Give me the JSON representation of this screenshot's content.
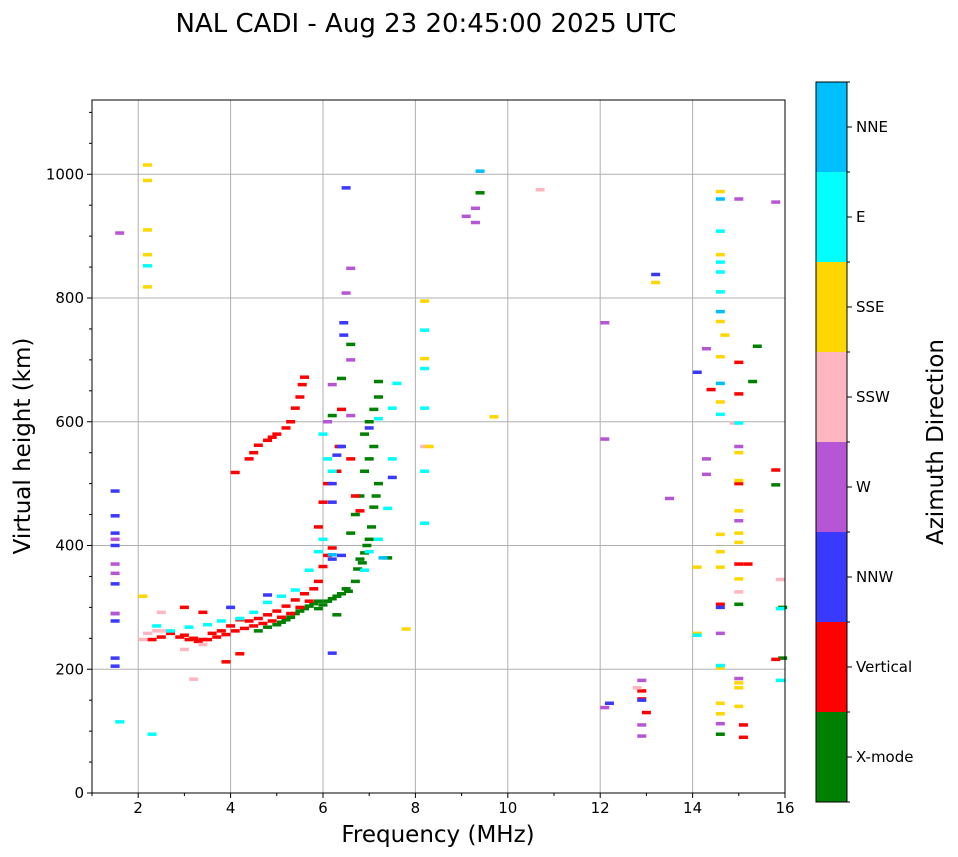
{
  "chart_data": {
    "type": "scatter",
    "title": "NAL CADI - Aug 23 20:45:00 2025 UTC",
    "xlabel": "Frequency (MHz)",
    "ylabel": "Virtual height (km)",
    "xlim": [
      1,
      16
    ],
    "ylim": [
      0,
      1120
    ],
    "xticks": [
      2,
      4,
      6,
      8,
      10,
      12,
      14,
      16
    ],
    "xtick_labels": [
      "2",
      "4",
      "6",
      "8",
      "10",
      "12",
      "14",
      "16"
    ],
    "yticks": [
      0,
      200,
      400,
      600,
      800,
      1000
    ],
    "ytick_labels": [
      "0",
      "200",
      "400",
      "600",
      "800",
      "1000"
    ],
    "grid": true,
    "colorbar": {
      "label": "Azimuth Direction",
      "categories": [
        {
          "name": "X-mode",
          "color": "#008000"
        },
        {
          "name": "Vertical",
          "color": "#ff0000"
        },
        {
          "name": "NNW",
          "color": "#3a3aff"
        },
        {
          "name": "W",
          "color": "#b656d6"
        },
        {
          "name": "SSW",
          "color": "#ffb6c1"
        },
        {
          "name": "SSE",
          "color": "#ffd700"
        },
        {
          "name": "E",
          "color": "#00ffff"
        },
        {
          "name": "NNE",
          "color": "#00bfff"
        }
      ]
    },
    "series": [
      {
        "name": "X-mode",
        "points": [
          [
            4.6,
            262
          ],
          [
            4.8,
            268
          ],
          [
            5.0,
            272
          ],
          [
            5.1,
            276
          ],
          [
            5.2,
            280
          ],
          [
            5.3,
            284
          ],
          [
            5.4,
            290
          ],
          [
            5.5,
            294
          ],
          [
            5.6,
            298
          ],
          [
            5.7,
            302
          ],
          [
            5.8,
            306
          ],
          [
            5.9,
            310
          ],
          [
            6.0,
            304
          ],
          [
            6.1,
            310
          ],
          [
            6.2,
            314
          ],
          [
            6.3,
            318
          ],
          [
            6.4,
            322
          ],
          [
            6.5,
            330
          ],
          [
            6.55,
            326
          ],
          [
            6.7,
            342
          ],
          [
            6.75,
            362
          ],
          [
            6.8,
            378
          ],
          [
            6.85,
            372
          ],
          [
            6.9,
            388
          ],
          [
            6.95,
            400
          ],
          [
            7.0,
            410
          ],
          [
            7.05,
            430
          ],
          [
            7.1,
            462
          ],
          [
            7.15,
            480
          ],
          [
            7.2,
            500
          ],
          [
            6.6,
            420
          ],
          [
            6.7,
            450
          ],
          [
            6.8,
            480
          ],
          [
            6.9,
            520
          ],
          [
            7.0,
            540
          ],
          [
            7.1,
            560
          ],
          [
            6.9,
            580
          ],
          [
            7.0,
            600
          ],
          [
            7.1,
            620
          ],
          [
            7.2,
            640
          ],
          [
            6.2,
            610
          ],
          [
            6.4,
            670
          ],
          [
            6.6,
            725
          ],
          [
            7.2,
            665
          ],
          [
            7.4,
            380
          ],
          [
            6.3,
            288
          ],
          [
            5.9,
            298
          ],
          [
            9.4,
            970
          ],
          [
            14.6,
            95
          ],
          [
            15.0,
            305
          ],
          [
            15.4,
            722
          ],
          [
            15.3,
            665
          ],
          [
            15.8,
            498
          ],
          [
            15.95,
            300
          ],
          [
            15.95,
            218
          ]
        ]
      },
      {
        "name": "Vertical",
        "points": [
          [
            2.3,
            248
          ],
          [
            2.5,
            252
          ],
          [
            2.7,
            258
          ],
          [
            2.9,
            252
          ],
          [
            3.1,
            248
          ],
          [
            3.3,
            245
          ],
          [
            3.5,
            248
          ],
          [
            3.7,
            252
          ],
          [
            3.9,
            256
          ],
          [
            4.1,
            262
          ],
          [
            4.3,
            266
          ],
          [
            4.5,
            270
          ],
          [
            4.7,
            274
          ],
          [
            4.9,
            278
          ],
          [
            5.1,
            284
          ],
          [
            5.3,
            290
          ],
          [
            5.5,
            300
          ],
          [
            5.7,
            310
          ],
          [
            5.8,
            330
          ],
          [
            5.9,
            342
          ],
          [
            6.0,
            366
          ],
          [
            6.1,
            384
          ],
          [
            6.2,
            396
          ],
          [
            3.0,
            255
          ],
          [
            3.2,
            250
          ],
          [
            3.4,
            248
          ],
          [
            3.6,
            258
          ],
          [
            3.8,
            262
          ],
          [
            4.0,
            270
          ],
          [
            4.2,
            280
          ],
          [
            4.4,
            278
          ],
          [
            4.6,
            282
          ],
          [
            4.8,
            288
          ],
          [
            5.0,
            294
          ],
          [
            5.2,
            302
          ],
          [
            5.4,
            312
          ],
          [
            5.6,
            322
          ],
          [
            3.0,
            300
          ],
          [
            3.4,
            292
          ],
          [
            3.9,
            212
          ],
          [
            4.2,
            225
          ],
          [
            4.1,
            518
          ],
          [
            4.4,
            540
          ],
          [
            4.5,
            550
          ],
          [
            4.6,
            562
          ],
          [
            4.8,
            570
          ],
          [
            4.9,
            575
          ],
          [
            5.0,
            580
          ],
          [
            5.2,
            590
          ],
          [
            5.3,
            600
          ],
          [
            5.4,
            622
          ],
          [
            5.5,
            640
          ],
          [
            5.55,
            660
          ],
          [
            5.6,
            672
          ],
          [
            5.9,
            430
          ],
          [
            6.0,
            470
          ],
          [
            6.1,
            500
          ],
          [
            6.3,
            520
          ],
          [
            6.35,
            560
          ],
          [
            6.4,
            620
          ],
          [
            6.6,
            540
          ],
          [
            6.7,
            480
          ],
          [
            6.8,
            456
          ],
          [
            12.9,
            165
          ],
          [
            12.9,
            152
          ],
          [
            13.0,
            130
          ],
          [
            14.4,
            652
          ],
          [
            14.6,
            305
          ],
          [
            15.0,
            696
          ],
          [
            15.0,
            645
          ],
          [
            15.0,
            500
          ],
          [
            15.0,
            370
          ],
          [
            15.2,
            370
          ],
          [
            15.1,
            110
          ],
          [
            15.1,
            90
          ],
          [
            15.8,
            522
          ],
          [
            15.8,
            216
          ]
        ]
      },
      {
        "name": "NNW",
        "points": [
          [
            1.5,
            488
          ],
          [
            1.5,
            448
          ],
          [
            1.5,
            420
          ],
          [
            1.5,
            400
          ],
          [
            1.5,
            338
          ],
          [
            1.5,
            290
          ],
          [
            1.5,
            278
          ],
          [
            1.5,
            218
          ],
          [
            1.5,
            205
          ],
          [
            6.2,
            226
          ],
          [
            6.2,
            378
          ],
          [
            6.4,
            384
          ],
          [
            6.2,
            470
          ],
          [
            6.2,
            500
          ],
          [
            6.3,
            546
          ],
          [
            6.4,
            560
          ],
          [
            6.45,
            740
          ],
          [
            6.45,
            760
          ],
          [
            6.5,
            978
          ],
          [
            7.0,
            590
          ],
          [
            7.5,
            510
          ],
          [
            4.0,
            300
          ],
          [
            4.8,
            320
          ],
          [
            12.2,
            145
          ],
          [
            12.9,
            150
          ],
          [
            13.2,
            838
          ],
          [
            14.1,
            680
          ],
          [
            14.6,
            300
          ]
        ]
      },
      {
        "name": "W",
        "points": [
          [
            1.5,
            410
          ],
          [
            1.5,
            370
          ],
          [
            1.5,
            355
          ],
          [
            1.5,
            290
          ],
          [
            1.6,
            905
          ],
          [
            6.1,
            600
          ],
          [
            6.2,
            660
          ],
          [
            6.5,
            808
          ],
          [
            6.6,
            848
          ],
          [
            6.6,
            700
          ],
          [
            6.6,
            610
          ],
          [
            9.1,
            932
          ],
          [
            9.3,
            922
          ],
          [
            9.3,
            945
          ],
          [
            12.1,
            760
          ],
          [
            12.1,
            572
          ],
          [
            12.1,
            138
          ],
          [
            12.9,
            182
          ],
          [
            12.9,
            110
          ],
          [
            12.9,
            92
          ],
          [
            13.5,
            476
          ],
          [
            14.3,
            718
          ],
          [
            14.3,
            540
          ],
          [
            14.3,
            515
          ],
          [
            14.6,
            258
          ],
          [
            14.6,
            112
          ],
          [
            15.0,
            960
          ],
          [
            15.0,
            560
          ],
          [
            15.0,
            440
          ],
          [
            15.0,
            185
          ],
          [
            15.8,
            955
          ]
        ]
      },
      {
        "name": "SSW",
        "points": [
          [
            2.1,
            248
          ],
          [
            2.2,
            258
          ],
          [
            2.4,
            262
          ],
          [
            2.5,
            292
          ],
          [
            2.6,
            262
          ],
          [
            3.0,
            232
          ],
          [
            3.2,
            184
          ],
          [
            3.4,
            240
          ],
          [
            8.2,
            560
          ],
          [
            10.7,
            975
          ],
          [
            12.8,
            170
          ],
          [
            14.9,
            598
          ],
          [
            15.0,
            325
          ],
          [
            15.9,
            345
          ]
        ]
      },
      {
        "name": "SSE",
        "points": [
          [
            2.2,
            1015
          ],
          [
            2.2,
            990
          ],
          [
            2.2,
            910
          ],
          [
            2.2,
            870
          ],
          [
            2.2,
            818
          ],
          [
            2.1,
            318
          ],
          [
            7.8,
            265
          ],
          [
            8.2,
            702
          ],
          [
            8.2,
            795
          ],
          [
            8.3,
            560
          ],
          [
            9.7,
            608
          ],
          [
            13.2,
            825
          ],
          [
            14.1,
            365
          ],
          [
            14.1,
            258
          ],
          [
            14.6,
            972
          ],
          [
            14.6,
            870
          ],
          [
            14.6,
            762
          ],
          [
            14.6,
            705
          ],
          [
            14.6,
            632
          ],
          [
            14.6,
            418
          ],
          [
            14.6,
            390
          ],
          [
            14.6,
            365
          ],
          [
            14.6,
            202
          ],
          [
            14.6,
            145
          ],
          [
            14.6,
            128
          ],
          [
            14.7,
            740
          ],
          [
            15.0,
            550
          ],
          [
            15.0,
            505
          ],
          [
            15.0,
            456
          ],
          [
            15.0,
            420
          ],
          [
            15.0,
            405
          ],
          [
            15.0,
            346
          ],
          [
            15.0,
            178
          ],
          [
            15.0,
            170
          ],
          [
            15.0,
            140
          ]
        ]
      },
      {
        "name": "E",
        "points": [
          [
            1.6,
            115
          ],
          [
            2.3,
            95
          ],
          [
            2.2,
            852
          ],
          [
            2.4,
            270
          ],
          [
            2.7,
            262
          ],
          [
            3.1,
            268
          ],
          [
            3.5,
            272
          ],
          [
            3.8,
            278
          ],
          [
            4.2,
            282
          ],
          [
            4.5,
            292
          ],
          [
            4.8,
            308
          ],
          [
            5.1,
            318
          ],
          [
            5.4,
            328
          ],
          [
            5.7,
            360
          ],
          [
            5.9,
            390
          ],
          [
            6.0,
            410
          ],
          [
            6.0,
            580
          ],
          [
            6.1,
            540
          ],
          [
            6.2,
            520
          ],
          [
            6.9,
            360
          ],
          [
            7.0,
            390
          ],
          [
            7.2,
            410
          ],
          [
            7.4,
            460
          ],
          [
            7.5,
            540
          ],
          [
            7.2,
            605
          ],
          [
            7.5,
            622
          ],
          [
            7.6,
            662
          ],
          [
            8.2,
            622
          ],
          [
            8.2,
            686
          ],
          [
            8.2,
            748
          ],
          [
            8.2,
            520
          ],
          [
            8.2,
            436
          ],
          [
            14.1,
            255
          ],
          [
            14.6,
            908
          ],
          [
            14.6,
            858
          ],
          [
            14.6,
            842
          ],
          [
            14.6,
            810
          ],
          [
            14.6,
            612
          ],
          [
            14.6,
            206
          ],
          [
            15.0,
            598
          ],
          [
            15.9,
            298
          ],
          [
            15.9,
            182
          ]
        ]
      },
      {
        "name": "NNE",
        "points": [
          [
            9.4,
            1005
          ],
          [
            14.6,
            960
          ],
          [
            14.6,
            778
          ],
          [
            14.6,
            662
          ],
          [
            7.3,
            380
          ],
          [
            6.2,
            385
          ]
        ]
      }
    ]
  }
}
